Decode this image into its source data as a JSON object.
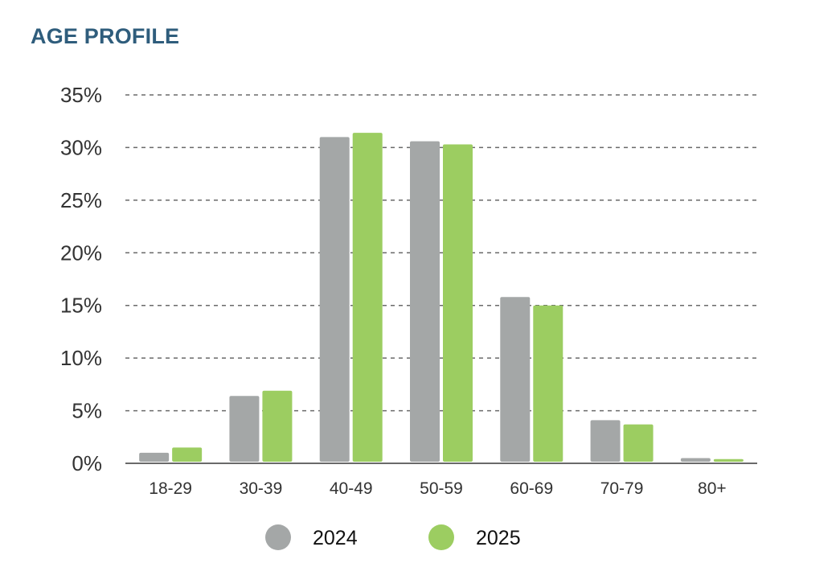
{
  "title": "AGE PROFILE",
  "colors": {
    "title": "#2f5d7c",
    "series_2024": "#a4a7a7",
    "series_2025": "#9ccd61",
    "grid": "#6a6a6a",
    "axis": "#6a6a6a"
  },
  "chart_data": {
    "type": "bar",
    "title": "AGE PROFILE",
    "categories": [
      "18-29",
      "30-39",
      "40-49",
      "50-59",
      "60-69",
      "70-79",
      "80+"
    ],
    "series": [
      {
        "name": "2024",
        "values": [
          1.0,
          6.4,
          31.0,
          30.6,
          15.8,
          4.1,
          0.5
        ]
      },
      {
        "name": "2025",
        "values": [
          1.5,
          6.9,
          31.4,
          30.3,
          15.0,
          3.7,
          0.4
        ]
      }
    ],
    "ylim": [
      0,
      35
    ],
    "yticks": [
      0,
      5,
      10,
      15,
      20,
      25,
      30,
      35
    ],
    "ytick_labels": [
      "0%",
      "5%",
      "10%",
      "15%",
      "20%",
      "25%",
      "30%",
      "35%"
    ],
    "xlabel": "",
    "ylabel": "",
    "grid": "horizontal dashed",
    "legend": "bottom-center"
  }
}
